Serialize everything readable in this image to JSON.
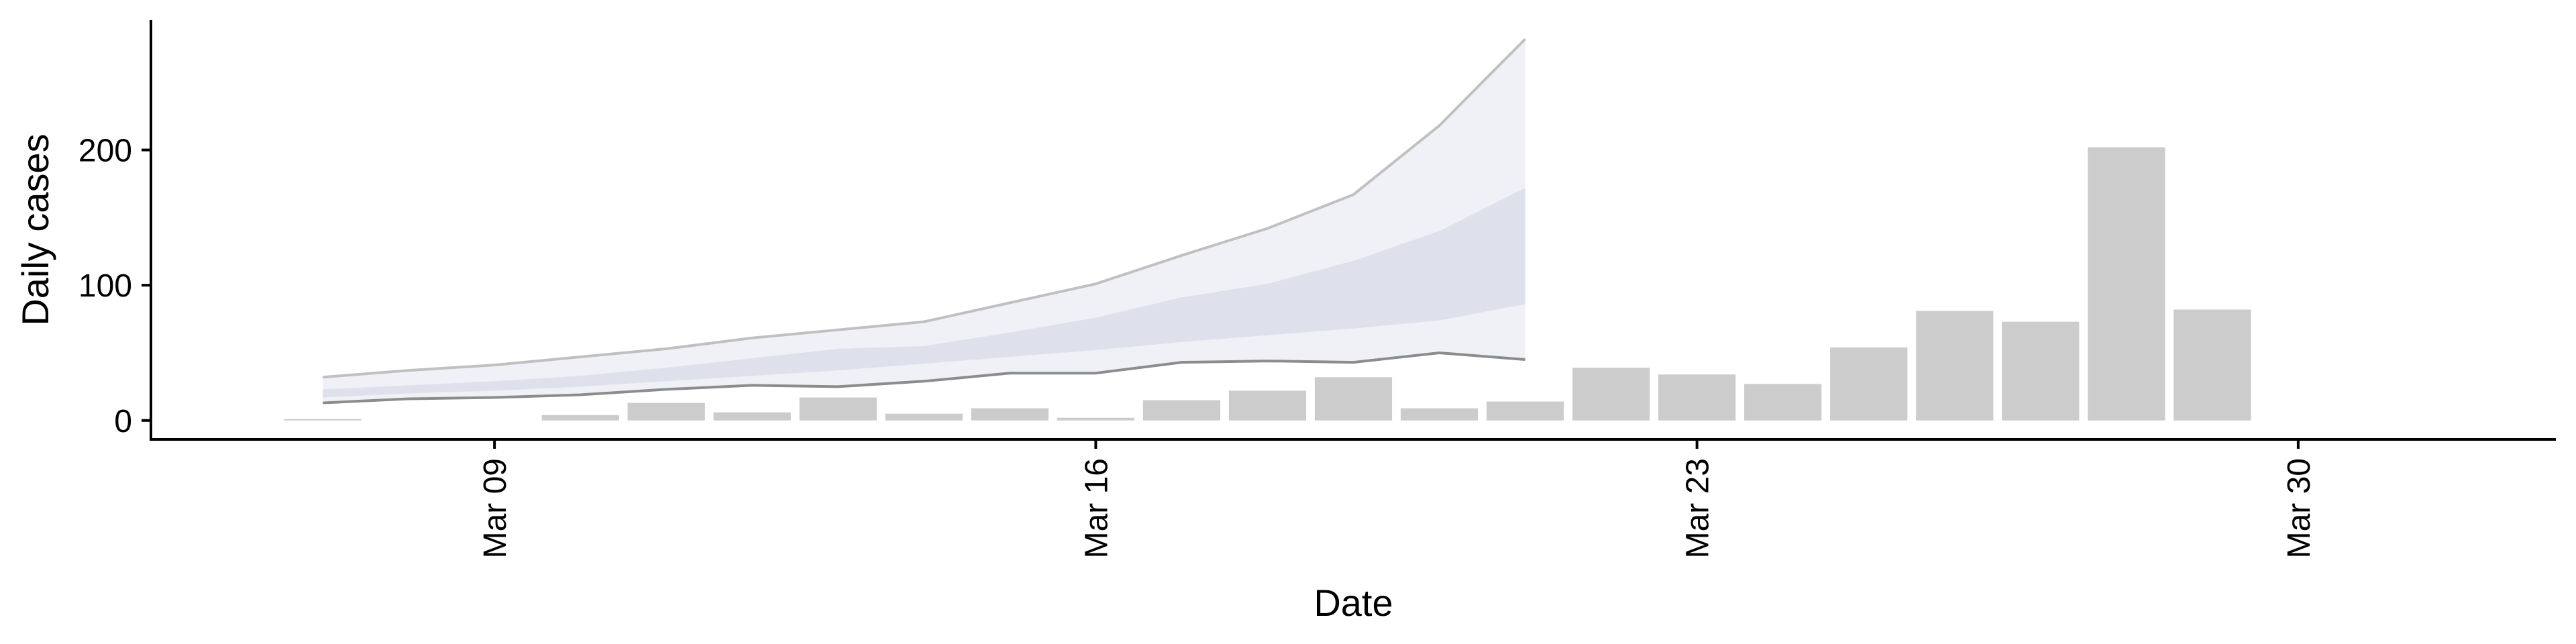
{
  "chart_data": {
    "type": "bar",
    "xlabel": "Date",
    "ylabel": "Daily cases",
    "x_axis": {
      "type": "date",
      "ticks": [
        "Mar 09",
        "Mar 16",
        "Mar 23",
        "Mar 30"
      ],
      "tick_dates": [
        "2020-03-09",
        "2020-03-16",
        "2020-03-23",
        "2020-03-30"
      ],
      "range": [
        "2020-03-05",
        "2020-04-02"
      ]
    },
    "y_axis": {
      "ticks": [
        0,
        100,
        200
      ],
      "range": [
        -14,
        296
      ]
    },
    "grid": false,
    "legend": "none",
    "colors": {
      "bars": "#cccccc",
      "band_outer": "#e6e8f0",
      "band_inner": "#d5d9e8",
      "band_outer_lines": [
        "#8c8c8c",
        "#c0c0c0"
      ]
    },
    "bars": {
      "dates": [
        "2020-03-07",
        "2020-03-08",
        "2020-03-09",
        "2020-03-10",
        "2020-03-11",
        "2020-03-12",
        "2020-03-13",
        "2020-03-14",
        "2020-03-15",
        "2020-03-16",
        "2020-03-17",
        "2020-03-18",
        "2020-03-19",
        "2020-03-20",
        "2020-03-21",
        "2020-03-22",
        "2020-03-23",
        "2020-03-24",
        "2020-03-25",
        "2020-03-26",
        "2020-03-27",
        "2020-03-28",
        "2020-03-29",
        "2020-03-30"
      ],
      "values": [
        1,
        0,
        0,
        4,
        13,
        6,
        17,
        5,
        9,
        2,
        15,
        22,
        32,
        9,
        14,
        39,
        34,
        27,
        54,
        81,
        73,
        202,
        82,
        0
      ]
    },
    "estimate_band": {
      "dates": [
        "2020-03-07",
        "2020-03-08",
        "2020-03-09",
        "2020-03-10",
        "2020-03-11",
        "2020-03-12",
        "2020-03-13",
        "2020-03-14",
        "2020-03-15",
        "2020-03-16",
        "2020-03-17",
        "2020-03-18",
        "2020-03-19",
        "2020-03-20",
        "2020-03-21"
      ],
      "outer_low": [
        13,
        16,
        17,
        19,
        23,
        26,
        25,
        29,
        35,
        35,
        43,
        44,
        43,
        50,
        45
      ],
      "outer_high": [
        32,
        37,
        41,
        47,
        53,
        61,
        67,
        73,
        87,
        101,
        122,
        142,
        167,
        218,
        282
      ],
      "inner_low": [
        17,
        20,
        22,
        25,
        29,
        33,
        37,
        42,
        47,
        52,
        58,
        63,
        68,
        74,
        86
      ],
      "inner_high": [
        23,
        26,
        29,
        33,
        39,
        46,
        53,
        55,
        65,
        76,
        91,
        101,
        118,
        140,
        172
      ]
    }
  }
}
